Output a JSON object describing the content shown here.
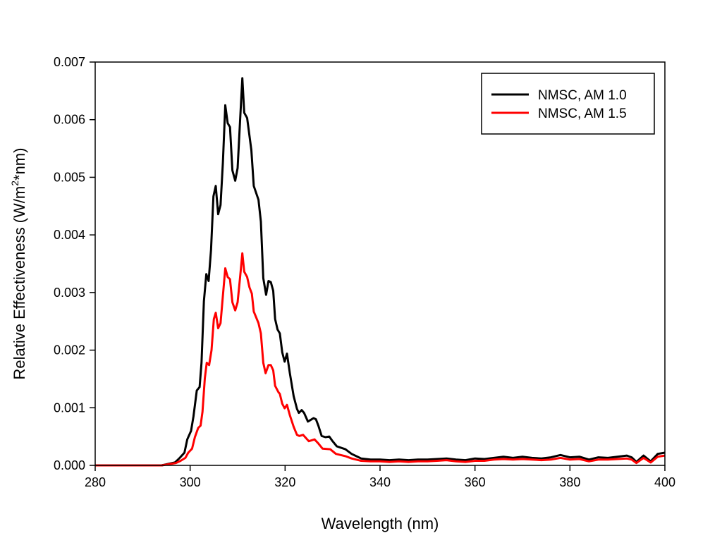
{
  "chart_data": {
    "type": "line",
    "title": "",
    "xlabel": "Wavelength (nm)",
    "ylabel_parts": [
      "Relative Effectiveness (W/m",
      "2",
      "*nm)"
    ],
    "xlim": [
      280,
      400
    ],
    "ylim": [
      0,
      0.007
    ],
    "xticks": [
      "280",
      "300",
      "320",
      "340",
      "360",
      "380",
      "400"
    ],
    "xtick_values": [
      280,
      300,
      320,
      340,
      360,
      380,
      400
    ],
    "yticks": [
      "0.000",
      "0.001",
      "0.002",
      "0.003",
      "0.004",
      "0.005",
      "0.006",
      "0.007"
    ],
    "ytick_values": [
      0,
      0.001,
      0.002,
      0.003,
      0.004,
      0.005,
      0.006,
      0.007
    ],
    "grid": false,
    "legend_position": "top-right",
    "series": [
      {
        "name": "NMSC, AM 1.0",
        "color": "#000000",
        "x": [
          280,
          294,
          296.8,
          297.8,
          298.8,
          299.4,
          300.2,
          300.7,
          301.4,
          302.0,
          302.4,
          302.9,
          303.4,
          303.9,
          304.4,
          304.9,
          305.4,
          305.9,
          306.4,
          306.9,
          307.4,
          307.9,
          308.4,
          308.9,
          309.5,
          310.0,
          310.5,
          311.0,
          311.4,
          312.0,
          312.9,
          313.4,
          314.4,
          314.9,
          315.4,
          316.0,
          316.5,
          317.0,
          317.5,
          317.9,
          318.4,
          318.9,
          319.4,
          319.9,
          320.4,
          321.0,
          321.8,
          322.5,
          322.9,
          323.5,
          324.0,
          324.8,
          325.2,
          326.0,
          326.5,
          327.0,
          327.7,
          328.5,
          329.3,
          330.0,
          330.9,
          332.7,
          334,
          336,
          338,
          340,
          342,
          344,
          346,
          348,
          350,
          352,
          354,
          356,
          358,
          360,
          362,
          364,
          366,
          368,
          370,
          372,
          374,
          376,
          378,
          380,
          382,
          384,
          386,
          388,
          390,
          392,
          393,
          394,
          395.5,
          397,
          398.5,
          400
        ],
        "y": [
          0,
          0,
          5e-05,
          0.00013,
          0.00022,
          0.00045,
          0.0006,
          0.00085,
          0.0013,
          0.00136,
          0.00178,
          0.00285,
          0.00332,
          0.0032,
          0.00374,
          0.00467,
          0.00485,
          0.00436,
          0.00452,
          0.00525,
          0.00625,
          0.00594,
          0.00587,
          0.00512,
          0.00494,
          0.00516,
          0.00596,
          0.00672,
          0.00612,
          0.00603,
          0.00547,
          0.00485,
          0.00461,
          0.00423,
          0.00325,
          0.00296,
          0.0032,
          0.00318,
          0.00303,
          0.00254,
          0.00236,
          0.00229,
          0.00196,
          0.0018,
          0.00194,
          0.0016,
          0.0012,
          0.00098,
          0.00091,
          0.00096,
          0.00091,
          0.00076,
          0.00078,
          0.00082,
          0.0008,
          0.00069,
          0.00051,
          0.00049,
          0.0005,
          0.00042,
          0.00033,
          0.00028,
          0.0002,
          0.00012,
          0.0001,
          0.0001,
          9e-05,
          0.0001,
          9e-05,
          0.0001,
          0.0001,
          0.00011,
          0.00012,
          0.0001,
          9e-05,
          0.00012,
          0.00011,
          0.00013,
          0.00015,
          0.00013,
          0.00015,
          0.00013,
          0.00012,
          0.00014,
          0.00018,
          0.00014,
          0.00015,
          0.0001,
          0.00014,
          0.00013,
          0.00015,
          0.00017,
          0.00014,
          6e-05,
          0.00017,
          7e-05,
          0.0002,
          0.00022
        ]
      },
      {
        "name": "NMSC, AM 1.5",
        "color": "#ff0000",
        "x": [
          280,
          294,
          297,
          298,
          299,
          299.6,
          300.4,
          301.0,
          301.7,
          302.2,
          302.6,
          303.1,
          303.5,
          304.0,
          304.5,
          305.0,
          305.4,
          305.9,
          306.4,
          306.9,
          307.4,
          307.9,
          308.4,
          308.9,
          309.5,
          310.0,
          310.5,
          311.0,
          311.4,
          312.0,
          312.5,
          313.0,
          313.4,
          314.4,
          314.9,
          315.4,
          315.9,
          316.5,
          317.0,
          317.5,
          317.9,
          318.6,
          318.9,
          319.4,
          319.9,
          320.4,
          321.0,
          321.8,
          322.5,
          323.0,
          323.8,
          325.0,
          326.2,
          327.0,
          327.9,
          329.5,
          330.7,
          332.7,
          334,
          336,
          338,
          340,
          342,
          344,
          346,
          348,
          350,
          352,
          354,
          356,
          358,
          360,
          362,
          364,
          366,
          368,
          370,
          372,
          374,
          376,
          378,
          380,
          382,
          384,
          386,
          388,
          390,
          392,
          393,
          394,
          395.5,
          397,
          398.5,
          400
        ],
        "y": [
          0,
          0,
          4e-05,
          8e-05,
          0.00013,
          0.00022,
          0.00029,
          0.00049,
          0.00065,
          0.00069,
          0.00093,
          0.00151,
          0.00178,
          0.00174,
          0.002,
          0.00254,
          0.00265,
          0.00238,
          0.00247,
          0.00294,
          0.00342,
          0.00327,
          0.00323,
          0.00283,
          0.00269,
          0.00283,
          0.00325,
          0.00368,
          0.00336,
          0.00327,
          0.00309,
          0.00298,
          0.00267,
          0.00247,
          0.00229,
          0.00178,
          0.0016,
          0.00174,
          0.00174,
          0.00165,
          0.00138,
          0.00127,
          0.00124,
          0.00107,
          0.00099,
          0.00105,
          0.00087,
          0.00067,
          0.00053,
          0.00051,
          0.00053,
          0.00042,
          0.00045,
          0.00038,
          0.00029,
          0.00028,
          0.0002,
          0.00016,
          0.00012,
          8e-05,
          7e-05,
          7e-05,
          6e-05,
          7e-05,
          6e-05,
          7e-05,
          7e-05,
          8e-05,
          9e-05,
          7e-05,
          6e-05,
          8e-05,
          8e-05,
          0.0001,
          0.00011,
          0.0001,
          0.00011,
          0.0001,
          9e-05,
          0.0001,
          0.00013,
          0.0001,
          0.00011,
          7e-05,
          0.0001,
          0.0001,
          0.00011,
          0.00012,
          0.0001,
          4e-05,
          0.00013,
          5e-05,
          0.00015,
          0.00017
        ]
      }
    ]
  }
}
